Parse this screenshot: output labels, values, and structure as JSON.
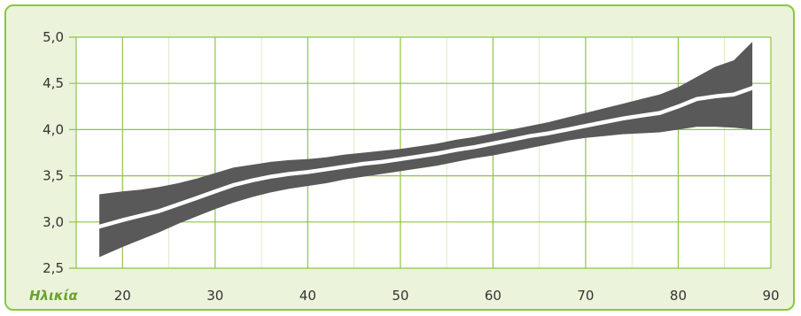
{
  "chart_data": {
    "type": "area",
    "xlabel": "Ηλικία",
    "ylabel": "",
    "title": "",
    "xlim": [
      15,
      90
    ],
    "ylim": [
      2.5,
      5.0
    ],
    "x_ticks": [
      20,
      30,
      40,
      50,
      60,
      70,
      80,
      90
    ],
    "y_ticks": [
      2.5,
      3.0,
      3.5,
      4.0,
      4.5,
      5.0
    ],
    "y_tick_labels": [
      "2,5",
      "3,0",
      "3,5",
      "4,0",
      "4,5",
      "5,0"
    ],
    "grid": true,
    "series": [
      {
        "role": "upper-bound",
        "x": [
          17.5,
          20,
          22,
          24,
          26,
          28,
          30,
          32,
          34,
          36,
          38,
          40,
          42,
          44,
          46,
          48,
          50,
          52,
          54,
          56,
          58,
          60,
          62,
          64,
          66,
          68,
          70,
          72,
          74,
          76,
          78,
          80,
          82,
          84,
          86,
          88
        ],
        "values": [
          3.3,
          3.33,
          3.35,
          3.38,
          3.42,
          3.47,
          3.53,
          3.59,
          3.62,
          3.65,
          3.67,
          3.68,
          3.7,
          3.73,
          3.75,
          3.77,
          3.79,
          3.82,
          3.85,
          3.89,
          3.92,
          3.96,
          4.0,
          4.04,
          4.08,
          4.13,
          4.18,
          4.23,
          4.28,
          4.33,
          4.38,
          4.46,
          4.57,
          4.68,
          4.75,
          4.95
        ]
      },
      {
        "role": "median",
        "x": [
          17.5,
          20,
          22,
          24,
          26,
          28,
          30,
          32,
          34,
          36,
          38,
          40,
          42,
          44,
          46,
          48,
          50,
          52,
          54,
          56,
          58,
          60,
          62,
          64,
          66,
          68,
          70,
          72,
          74,
          76,
          78,
          80,
          82,
          84,
          86,
          88
        ],
        "values": [
          2.95,
          3.02,
          3.07,
          3.12,
          3.19,
          3.26,
          3.33,
          3.4,
          3.45,
          3.49,
          3.52,
          3.54,
          3.57,
          3.6,
          3.63,
          3.65,
          3.68,
          3.71,
          3.74,
          3.78,
          3.81,
          3.85,
          3.89,
          3.93,
          3.96,
          4.0,
          4.04,
          4.08,
          4.12,
          4.15,
          4.18,
          4.25,
          4.33,
          4.36,
          4.38,
          4.45
        ]
      },
      {
        "role": "lower-bound",
        "x": [
          17.5,
          20,
          22,
          24,
          26,
          28,
          30,
          32,
          34,
          36,
          38,
          40,
          42,
          44,
          46,
          48,
          50,
          52,
          54,
          56,
          58,
          60,
          62,
          64,
          66,
          68,
          70,
          72,
          74,
          76,
          78,
          80,
          82,
          84,
          86,
          88
        ],
        "values": [
          2.62,
          2.73,
          2.81,
          2.89,
          2.98,
          3.06,
          3.14,
          3.21,
          3.27,
          3.32,
          3.36,
          3.39,
          3.42,
          3.46,
          3.49,
          3.52,
          3.55,
          3.58,
          3.61,
          3.65,
          3.69,
          3.72,
          3.76,
          3.8,
          3.84,
          3.88,
          3.91,
          3.93,
          3.95,
          3.96,
          3.97,
          4.0,
          4.03,
          4.03,
          4.02,
          4.0
        ]
      }
    ],
    "colors": {
      "band": "#595959",
      "median": "#ffffff",
      "grid": "#8cc63f",
      "background": "#ebf3da",
      "axis_title": "#6aa331"
    }
  }
}
